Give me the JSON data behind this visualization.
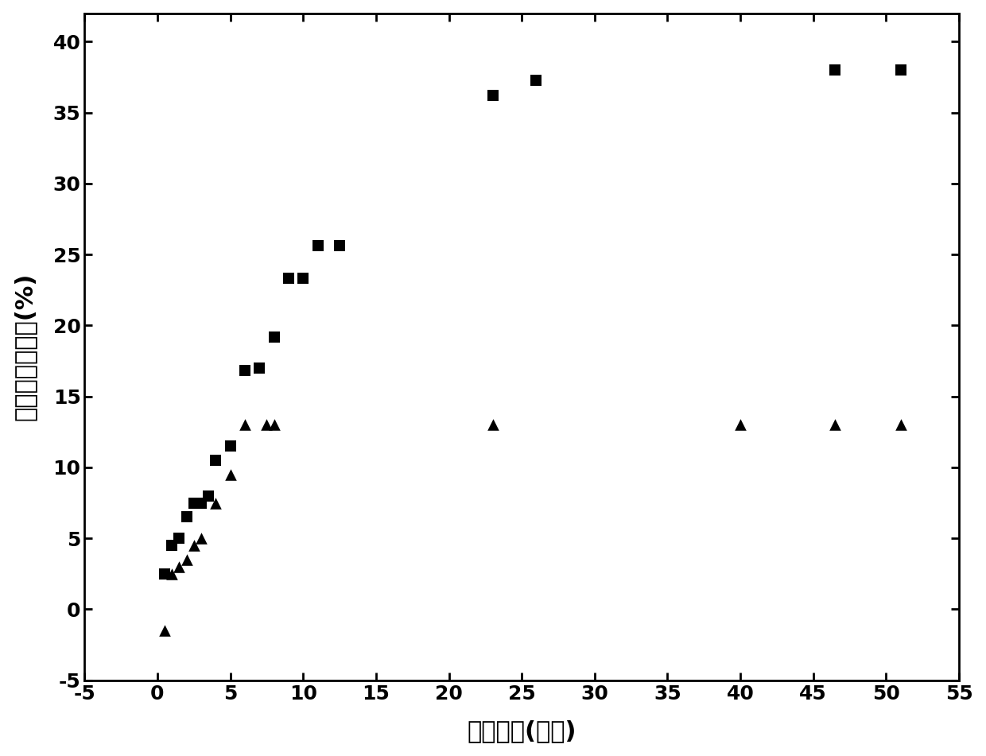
{
  "squares_x": [
    0.5,
    1.0,
    1.5,
    2.0,
    2.5,
    3.0,
    3.5,
    4.0,
    5.0,
    6.0,
    7.0,
    8.0,
    9.0,
    10.0,
    11.0,
    12.5,
    23.0,
    26.0,
    46.5,
    51.0
  ],
  "squares_y": [
    2.5,
    4.5,
    5.0,
    6.5,
    7.5,
    7.5,
    8.0,
    10.5,
    11.5,
    16.8,
    17.0,
    19.2,
    23.3,
    23.3,
    25.6,
    25.6,
    36.2,
    37.3,
    38.0,
    38.0
  ],
  "triangles_x": [
    0.5,
    1.0,
    1.5,
    2.0,
    2.5,
    3.0,
    4.0,
    5.0,
    6.0,
    7.5,
    8.0,
    23.0,
    40.0,
    46.5,
    51.0
  ],
  "triangles_y": [
    -1.5,
    2.5,
    3.0,
    3.5,
    4.5,
    5.0,
    7.5,
    9.5,
    13.0,
    13.0,
    13.0,
    13.0,
    13.0,
    13.0,
    13.0
  ],
  "xlabel": "释放时间(小时)",
  "ylabel": "药物累计释放率(%)",
  "xlim": [
    -5,
    55
  ],
  "ylim": [
    -4,
    42
  ],
  "xticks": [
    -5,
    0,
    5,
    10,
    15,
    20,
    25,
    30,
    35,
    40,
    45,
    50,
    55
  ],
  "yticks": [
    -5,
    0,
    5,
    10,
    15,
    20,
    25,
    30,
    35,
    40
  ],
  "marker_color": "#000000",
  "background_color": "#ffffff",
  "marker_size": 110,
  "font_size_label": 22,
  "font_size_tick": 18,
  "spine_linewidth": 2.0
}
